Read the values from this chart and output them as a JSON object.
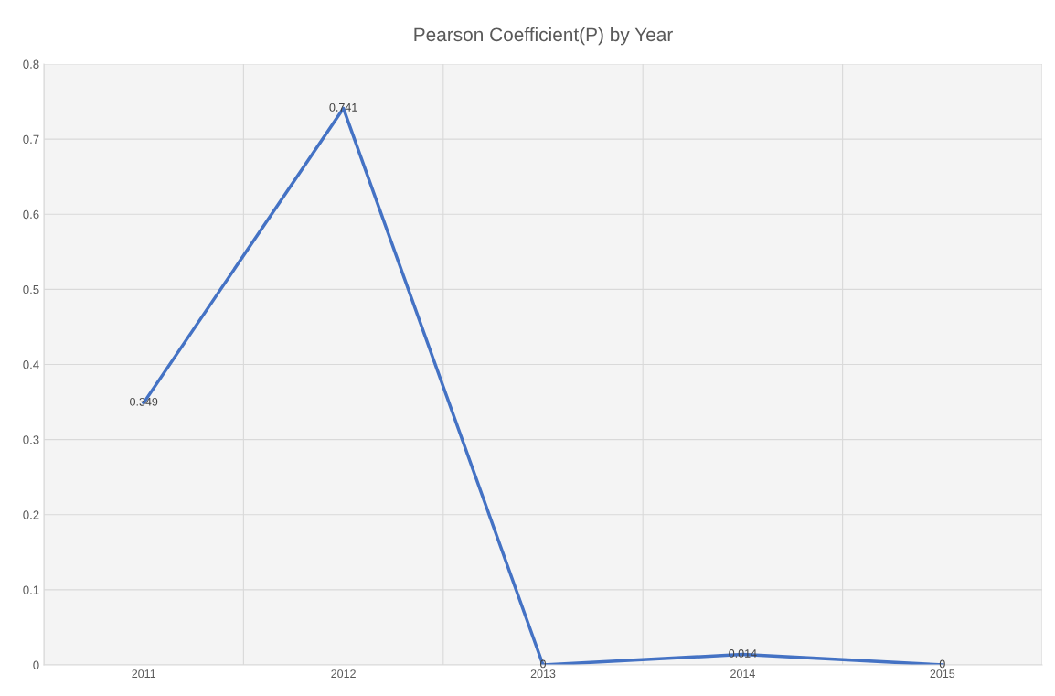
{
  "chart_data": {
    "type": "line",
    "title": "Pearson Coefficient(P) by Year",
    "categories": [
      "2011",
      "2012",
      "2013",
      "2014",
      "2015"
    ],
    "series": [
      {
        "color": "#4472c4",
        "values": [
          0.349,
          0.741,
          0,
          0.014,
          0
        ]
      }
    ],
    "ylim": [
      0,
      0.8
    ],
    "yticks": [
      0,
      0.1,
      0.2,
      0.3,
      0.4,
      0.5,
      0.6,
      0.7,
      0.8
    ],
    "grid": true,
    "data_labels": true,
    "marker": "none",
    "line_style": "solid"
  }
}
